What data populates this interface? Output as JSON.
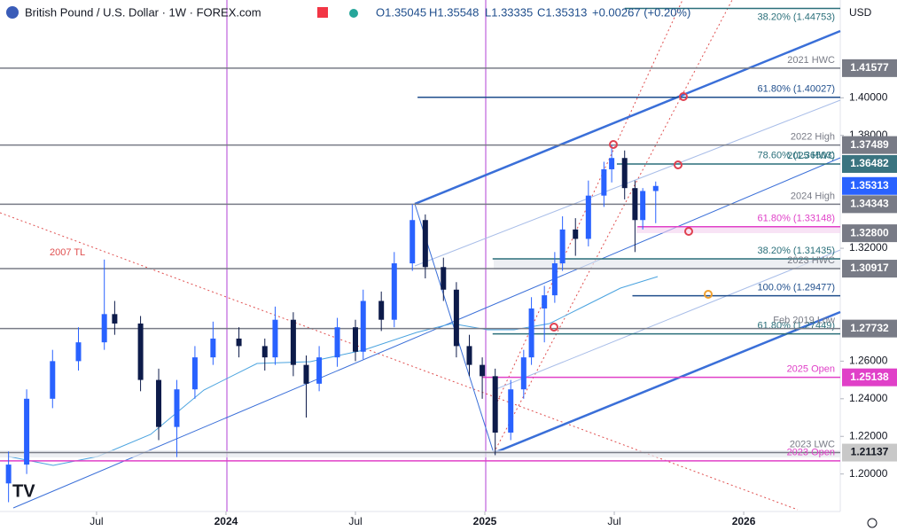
{
  "header": {
    "symbol": "British Pound / U.S. Dollar · 1W · FOREX.com",
    "open": "O1.35045",
    "high": "H1.35548",
    "low": "L1.33335",
    "close": "C1.35313",
    "change": "+0.00267 (+0.20%)",
    "currency": "USD"
  },
  "chart_data": {
    "type": "candlestick",
    "x": [
      2023.16,
      2023.23,
      2023.33,
      2023.43,
      2023.53,
      2023.57,
      2023.67,
      2023.74,
      2023.81,
      2023.88,
      2023.95,
      2024.05,
      2024.15,
      2024.19,
      2024.26,
      2024.31,
      2024.36,
      2024.43,
      2024.5,
      2024.53,
      2024.6,
      2024.65,
      2024.72,
      2024.77,
      2024.84,
      2024.89,
      2024.94,
      2024.99,
      2025.04,
      2025.1,
      2025.15,
      2025.18,
      2025.23,
      2025.27,
      2025.3,
      2025.35,
      2025.4,
      2025.46,
      2025.49,
      2025.54,
      2025.58,
      2025.61,
      2025.66
    ],
    "open": [
      1.195,
      1.205,
      1.24,
      1.26,
      1.27,
      1.285,
      1.28,
      1.25,
      1.225,
      1.245,
      1.262,
      1.272,
      1.268,
      1.262,
      1.282,
      1.258,
      1.248,
      1.262,
      1.278,
      1.265,
      1.292,
      1.282,
      1.312,
      1.335,
      1.31,
      1.298,
      1.268,
      1.258,
      1.252,
      1.222,
      1.245,
      1.262,
      1.288,
      1.295,
      1.312,
      1.33,
      1.325,
      1.348,
      1.362,
      1.368,
      1.352,
      1.335,
      1.35045
    ],
    "high": [
      1.212,
      1.245,
      1.266,
      1.278,
      1.314,
      1.292,
      1.284,
      1.256,
      1.25,
      1.268,
      1.281,
      1.278,
      1.272,
      1.289,
      1.286,
      1.263,
      1.268,
      1.283,
      1.282,
      1.298,
      1.297,
      1.318,
      1.3434,
      1.338,
      1.315,
      1.302,
      1.274,
      1.262,
      1.256,
      1.25,
      1.266,
      1.294,
      1.3,
      1.318,
      1.337,
      1.336,
      1.356,
      1.366,
      1.3749,
      1.372,
      1.356,
      1.352,
      1.35548
    ],
    "low": [
      1.185,
      1.2,
      1.235,
      1.255,
      1.266,
      1.274,
      1.244,
      1.218,
      1.209,
      1.24,
      1.258,
      1.262,
      1.255,
      1.258,
      1.252,
      1.23,
      1.244,
      1.257,
      1.26,
      1.261,
      1.276,
      1.278,
      1.308,
      1.304,
      1.292,
      1.262,
      1.252,
      1.24,
      1.21,
      1.218,
      1.24,
      1.258,
      1.27,
      1.291,
      1.308,
      1.316,
      1.321,
      1.342,
      1.355,
      1.346,
      1.318,
      1.33,
      1.33335
    ],
    "close": [
      1.205,
      1.24,
      1.26,
      1.27,
      1.285,
      1.28,
      1.25,
      1.225,
      1.245,
      1.262,
      1.272,
      1.268,
      1.262,
      1.282,
      1.258,
      1.248,
      1.262,
      1.278,
      1.265,
      1.292,
      1.282,
      1.312,
      1.335,
      1.31,
      1.298,
      1.268,
      1.258,
      1.252,
      1.222,
      1.245,
      1.262,
      1.288,
      1.295,
      1.312,
      1.33,
      1.325,
      1.348,
      1.362,
      1.368,
      1.352,
      1.335,
      1.35046,
      1.35313
    ],
    "up_color": "#2962ff",
    "down_color": "#0d1b4a",
    "xlim": [
      2023.127,
      2026.373
    ],
    "xticks": [
      {
        "value": 2023.5,
        "label": "Jul"
      },
      {
        "value": 2024,
        "label": "2024"
      },
      {
        "value": 2024.5,
        "label": "Jul"
      },
      {
        "value": 2025,
        "label": "2025"
      },
      {
        "value": 2025.5,
        "label": "Jul"
      },
      {
        "value": 2026,
        "label": "2026"
      }
    ],
    "ylim": [
      1.181,
      1.452
    ],
    "yticks": [
      {
        "value": 1.2,
        "label": "1.20000"
      },
      {
        "value": 1.22,
        "label": "1.22000"
      },
      {
        "value": 1.24,
        "label": "1.24000"
      },
      {
        "value": 1.26,
        "label": "1.26000"
      },
      {
        "value": 1.32,
        "label": "1.32000"
      },
      {
        "value": 1.38,
        "label": "1.38000"
      },
      {
        "value": 1.4,
        "label": "1.40000"
      }
    ],
    "levels": [
      {
        "label": "38.20% (1.44753)",
        "value": 1.44753,
        "color": "#2a6f7a",
        "start": 2025.54
      },
      {
        "label": "2021 HWC",
        "value": 1.41577,
        "color": "#787b86",
        "start": 2023.127
      },
      {
        "label": "61.80% (1.40027)",
        "value": 1.40027,
        "color": "#1f4e8c",
        "start": 2024.74
      },
      {
        "label": "2022 High",
        "value": 1.37489,
        "color": "#787b86",
        "start": 2023.127
      },
      {
        "label": "2025 HWC",
        "value": 1.36482,
        "color": "#2a6f7a",
        "start": 2025.51
      },
      {
        "label": "78.60% (1.36503)",
        "value": 1.36503,
        "color": "#2a6f7a",
        "start": 2026.373
      },
      {
        "label": "2024 High",
        "value": 1.34343,
        "color": "#787b86",
        "start": 2023.127
      },
      {
        "label": "61.80% (1.33148)",
        "value": 1.33148,
        "color": "#e040c8",
        "start": 2025.59
      },
      {
        "label": "38.20% (1.31435)",
        "value": 1.31435,
        "color": "#2a6f7a",
        "start": 2025.03
      },
      {
        "label": "2023 HWC",
        "value": 1.30917,
        "color": "#787b86",
        "start": 2023.127
      },
      {
        "label": "100.0% (1.29477)",
        "value": 1.29477,
        "color": "#1f4e8c",
        "start": 2025.57
      },
      {
        "label": "61.80% (1.27449)",
        "value": 1.27449,
        "color": "#2a6f7a",
        "start": 2025.03
      },
      {
        "label": "Feb 2019 Low",
        "value": 1.27732,
        "color": "#787b86",
        "start": 2023.127
      },
      {
        "label": "2025 Open",
        "value": 1.25138,
        "color": "#e040c8",
        "start": 2024.99
      },
      {
        "label": "2023 LWC",
        "value": 1.21137,
        "color": "#787b86",
        "start": 2023.127
      },
      {
        "label": "2023 Open",
        "value": 1.207,
        "color": "#e040c8",
        "start": 2023.127
      }
    ],
    "price_tags": [
      {
        "value": 1.41577,
        "label": "1.41577",
        "color": "#787b86"
      },
      {
        "value": 1.37489,
        "label": "1.37489",
        "color": "#787b86"
      },
      {
        "value": 1.36482,
        "label": "1.36482",
        "color": "#3a7480"
      },
      {
        "value": 1.35313,
        "label": "1.35313",
        "color": "#2962ff"
      },
      {
        "value": 1.34343,
        "label": "1.34343",
        "color": "#787b86"
      },
      {
        "value": 1.328,
        "label": "1.32800",
        "color": "#787b86"
      },
      {
        "value": 1.30917,
        "label": "1.30917",
        "color": "#787b86"
      },
      {
        "value": 1.27732,
        "label": "1.27732",
        "color": "#787b86"
      },
      {
        "value": 1.25138,
        "label": "1.25138",
        "color": "#e040c8"
      },
      {
        "value": 1.21137,
        "label": "1.21137",
        "color": "#c8c8c8"
      }
    ],
    "annotation": "2007 TL"
  }
}
